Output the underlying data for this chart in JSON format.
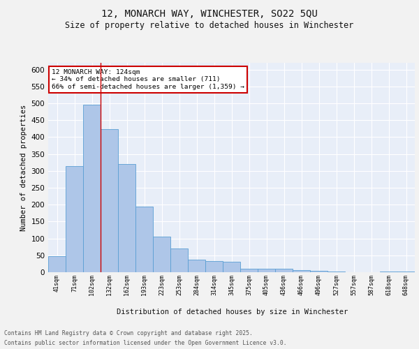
{
  "title_line1": "12, MONARCH WAY, WINCHESTER, SO22 5QU",
  "title_line2": "Size of property relative to detached houses in Winchester",
  "xlabel": "Distribution of detached houses by size in Winchester",
  "ylabel": "Number of detached properties",
  "categories": [
    "41sqm",
    "71sqm",
    "102sqm",
    "132sqm",
    "162sqm",
    "193sqm",
    "223sqm",
    "253sqm",
    "284sqm",
    "314sqm",
    "345sqm",
    "375sqm",
    "405sqm",
    "436sqm",
    "466sqm",
    "496sqm",
    "527sqm",
    "557sqm",
    "587sqm",
    "618sqm",
    "648sqm"
  ],
  "values": [
    48,
    314,
    497,
    424,
    320,
    195,
    105,
    70,
    38,
    34,
    30,
    11,
    10,
    11,
    7,
    5,
    3,
    1,
    0,
    3,
    2
  ],
  "bar_color": "#aec6e8",
  "bar_edge_color": "#5a9fd4",
  "annotation_text": "12 MONARCH WAY: 124sqm\n← 34% of detached houses are smaller (711)\n66% of semi-detached houses are larger (1,359) →",
  "vline_x": 2.5,
  "vline_color": "#cc0000",
  "ylim": [
    0,
    620
  ],
  "yticks": [
    0,
    50,
    100,
    150,
    200,
    250,
    300,
    350,
    400,
    450,
    500,
    550,
    600
  ],
  "background_color": "#e8eef8",
  "grid_color": "#ffffff",
  "footer_line1": "Contains HM Land Registry data © Crown copyright and database right 2025.",
  "footer_line2": "Contains public sector information licensed under the Open Government Licence v3.0."
}
